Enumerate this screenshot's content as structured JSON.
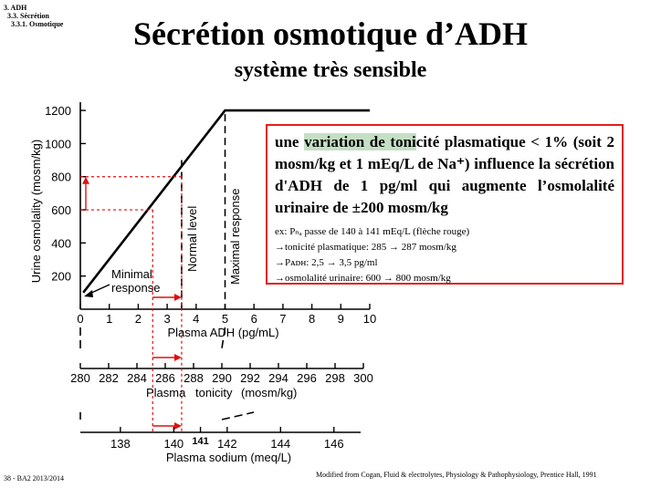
{
  "breadcrumb": [
    "3. ADH",
    "3.3. Sécrétion",
    "3.3.1. Osmotique"
  ],
  "title": "Sécrétion osmotique d’ADH",
  "subtitle": "système très sensible",
  "chart_data": {
    "type": "line",
    "ylabel": "Urine osmolality (mosm/kg)",
    "yticks": [
      200,
      400,
      600,
      800,
      1000,
      1200
    ],
    "ylim": [
      0,
      1250
    ],
    "x_axes": [
      {
        "label": "Plasma ADH (pg/mL)",
        "ticks": [
          0,
          1,
          2,
          3,
          4,
          5,
          6,
          7,
          8,
          9,
          10
        ],
        "range": [
          0,
          10
        ]
      },
      {
        "label_words": [
          "Plasma",
          "tonicity",
          "(mosm/kg)"
        ],
        "ticks": [
          280,
          282,
          284,
          286,
          288,
          290,
          292,
          294,
          296,
          298,
          300
        ],
        "range": [
          280,
          300
        ]
      },
      {
        "label": "Plasma sodium (meq/L)",
        "ticks": [
          138,
          140,
          141,
          142,
          144,
          146
        ],
        "range": [
          136.5,
          147
        ]
      }
    ],
    "series": [
      {
        "points": [
          [
            0.1,
            100
          ],
          [
            5.0,
            1200
          ],
          [
            5.3,
            1200
          ],
          [
            10,
            1200
          ]
        ]
      }
    ],
    "annotations": [
      "Minimal response",
      "Normal level",
      "Maximal response"
    ],
    "highlight": {
      "adh": [
        2.5,
        3.5
      ],
      "osmolality": [
        600,
        800
      ]
    }
  },
  "infobox": {
    "main_pre": "une ",
    "main_highlight": "variation de toni",
    "main_post": "cité plasmatique < 1% (soit 2 mosm/kg et 1 mEq/L de Na⁺) influence la sécrétion d'ADH de 1 pg/ml qui augmente l’osmolalité urinaire de ±200 mosm/kg",
    "line1": "ex: Pₙₐ passe de 140 à 141 mEq/L (flèche rouge)",
    "line2": "→tonicité plasmatique: 285 → 287 mosm/kg",
    "line3": "→Pᴀᴅʜ: 2,5 → 3,5 pg/ml",
    "line4": "→osmolalité urinaire: 600 → 800 mosm/kg"
  },
  "footer": {
    "left": "38 - BA2 2013/2014",
    "right": "Modified from Cogan, Fluid & electrolytes, Physiology & Pathophysiology, Prentice Hall, 1991"
  },
  "colors": {
    "highlight_box": "#e0201a",
    "text_highlight": "#c4dfc4",
    "dashed_guides": "#d11"
  }
}
